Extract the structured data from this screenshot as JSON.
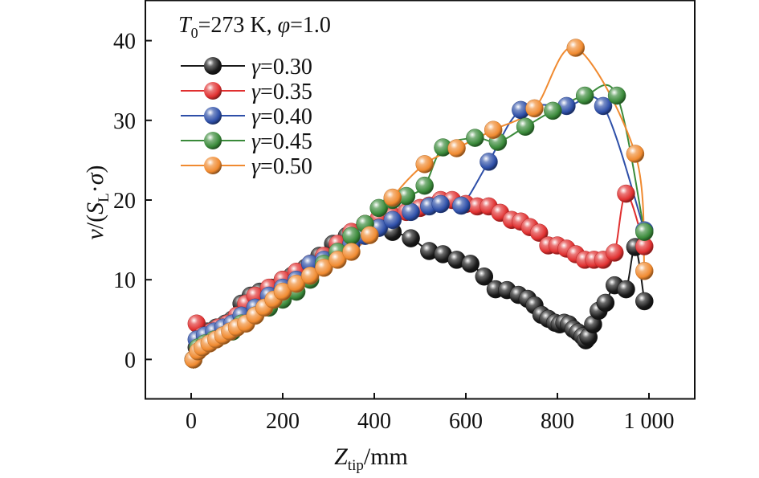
{
  "chart_data": {
    "type": "line",
    "condition_label": {
      "t_symbol": "T",
      "t_sub": "0",
      "t_value": "=273 K, ",
      "phi_symbol": "φ",
      "phi_value": "=1.0"
    },
    "xlabel": {
      "main": "Z",
      "sub": "tip",
      "rest": "/mm"
    },
    "ylabel": {
      "pre": "v/(S",
      "sub": "L",
      "post": "·σ)"
    },
    "xlim": [
      -100,
      1100
    ],
    "ylim": [
      -5,
      45
    ],
    "xticks": [
      0,
      200,
      400,
      600,
      800,
      1000
    ],
    "xtick_labels": [
      "0",
      "200",
      "400",
      "600",
      "800",
      "1 000"
    ],
    "yticks": [
      0,
      10,
      20,
      30,
      40
    ],
    "ytick_labels": [
      "0",
      "10",
      "20",
      "30",
      "40"
    ],
    "legend_position": "top-left",
    "series": [
      {
        "name": "γ=0.30",
        "color": "#1a1a1a",
        "points": [
          [
            5,
            0
          ],
          [
            12,
            1.5
          ],
          [
            20,
            2.5
          ],
          [
            35,
            3.5
          ],
          [
            55,
            4
          ],
          [
            75,
            4.5
          ],
          [
            90,
            5
          ],
          [
            110,
            7
          ],
          [
            130,
            8
          ],
          [
            150,
            8.5
          ],
          [
            175,
            9
          ],
          [
            200,
            10
          ],
          [
            220,
            10.5
          ],
          [
            250,
            11.5
          ],
          [
            280,
            13
          ],
          [
            310,
            14.5
          ],
          [
            340,
            15.5
          ],
          [
            370,
            16
          ],
          [
            400,
            16.5
          ],
          [
            440,
            16
          ],
          [
            480,
            15.2
          ],
          [
            520,
            13.6
          ],
          [
            550,
            13.2
          ],
          [
            580,
            12.5
          ],
          [
            610,
            12
          ],
          [
            640,
            10.4
          ],
          [
            665,
            8.8
          ],
          [
            690,
            8.7
          ],
          [
            715,
            8.1
          ],
          [
            735,
            7.6
          ],
          [
            750,
            6.8
          ],
          [
            765,
            5.6
          ],
          [
            780,
            5.1
          ],
          [
            795,
            4.6
          ],
          [
            805,
            4.4
          ],
          [
            815,
            4.6
          ],
          [
            825,
            4.4
          ],
          [
            835,
            3.8
          ],
          [
            845,
            3.4
          ],
          [
            855,
            2.9
          ],
          [
            862,
            2.4
          ],
          [
            868,
            2.8
          ],
          [
            878,
            4.4
          ],
          [
            890,
            6.1
          ],
          [
            905,
            7.1
          ],
          [
            925,
            9.3
          ],
          [
            950,
            8.8
          ],
          [
            970,
            14.1
          ],
          [
            990,
            7.3
          ]
        ]
      },
      {
        "name": "γ=0.35",
        "color": "#e03030",
        "points": [
          [
            5,
            0
          ],
          [
            12,
            4.5
          ],
          [
            25,
            3
          ],
          [
            45,
            3.5
          ],
          [
            60,
            4
          ],
          [
            80,
            4.5
          ],
          [
            100,
            5.5
          ],
          [
            120,
            7
          ],
          [
            140,
            8
          ],
          [
            170,
            9
          ],
          [
            200,
            10
          ],
          [
            230,
            11
          ],
          [
            260,
            12
          ],
          [
            290,
            13
          ],
          [
            320,
            14.5
          ],
          [
            350,
            16
          ],
          [
            380,
            17
          ],
          [
            410,
            17.7
          ],
          [
            440,
            18
          ],
          [
            470,
            18.5
          ],
          [
            500,
            19
          ],
          [
            520,
            19.3
          ],
          [
            545,
            20
          ],
          [
            570,
            20
          ],
          [
            600,
            19.5
          ],
          [
            625,
            19.2
          ],
          [
            650,
            19.2
          ],
          [
            675,
            18.4
          ],
          [
            700,
            17.5
          ],
          [
            720,
            17.3
          ],
          [
            740,
            16.6
          ],
          [
            760,
            15.9
          ],
          [
            780,
            14.3
          ],
          [
            800,
            14.3
          ],
          [
            820,
            13.9
          ],
          [
            840,
            13.2
          ],
          [
            860,
            12.5
          ],
          [
            880,
            12.5
          ],
          [
            900,
            12.5
          ],
          [
            925,
            13.4
          ],
          [
            950,
            20.8
          ],
          [
            990,
            14.2
          ]
        ]
      },
      {
        "name": "γ=0.40",
        "color": "#2e4fa8",
        "points": [
          [
            5,
            0
          ],
          [
            12,
            2.5
          ],
          [
            30,
            3
          ],
          [
            50,
            3.5
          ],
          [
            70,
            4
          ],
          [
            90,
            4.5
          ],
          [
            110,
            5.5
          ],
          [
            140,
            6.5
          ],
          [
            170,
            8
          ],
          [
            200,
            9
          ],
          [
            230,
            10
          ],
          [
            260,
            12
          ],
          [
            290,
            12.5
          ],
          [
            320,
            13.2
          ],
          [
            350,
            14.5
          ],
          [
            380,
            15.5
          ],
          [
            410,
            16.5
          ],
          [
            440,
            17.5
          ],
          [
            480,
            18.5
          ],
          [
            520,
            19.2
          ],
          [
            545,
            19.5
          ],
          [
            590,
            19.3
          ],
          [
            650,
            24.8
          ],
          [
            720,
            31.3
          ],
          [
            820,
            31.8
          ],
          [
            900,
            31.8
          ],
          [
            990,
            16.2
          ]
        ]
      },
      {
        "name": "γ=0.45",
        "color": "#3a8a3a",
        "points": [
          [
            5,
            0
          ],
          [
            15,
            1.5
          ],
          [
            30,
            2
          ],
          [
            50,
            2.5
          ],
          [
            70,
            3
          ],
          [
            90,
            3.5
          ],
          [
            110,
            4.5
          ],
          [
            140,
            5.5
          ],
          [
            170,
            6.5
          ],
          [
            200,
            7.5
          ],
          [
            230,
            8.5
          ],
          [
            260,
            10
          ],
          [
            290,
            12
          ],
          [
            320,
            13.5
          ],
          [
            350,
            15.5
          ],
          [
            380,
            17
          ],
          [
            410,
            19
          ],
          [
            440,
            20
          ],
          [
            470,
            20.5
          ],
          [
            510,
            21.8
          ],
          [
            550,
            26.6
          ],
          [
            620,
            27.8
          ],
          [
            670,
            27.3
          ],
          [
            730,
            29.2
          ],
          [
            790,
            31.2
          ],
          [
            860,
            33.1
          ],
          [
            930,
            33.1
          ],
          [
            990,
            16
          ]
        ]
      },
      {
        "name": "γ=0.50",
        "color": "#f08a30",
        "points": [
          [
            5,
            0
          ],
          [
            15,
            1
          ],
          [
            25,
            1.5
          ],
          [
            40,
            2
          ],
          [
            55,
            2.5
          ],
          [
            70,
            3
          ],
          [
            85,
            3.5
          ],
          [
            100,
            4
          ],
          [
            120,
            4.5
          ],
          [
            140,
            5.5
          ],
          [
            160,
            6.5
          ],
          [
            180,
            7.5
          ],
          [
            200,
            8.5
          ],
          [
            230,
            9.5
          ],
          [
            260,
            10.5
          ],
          [
            290,
            11.5
          ],
          [
            320,
            12.5
          ],
          [
            350,
            13.5
          ],
          [
            390,
            15.6
          ],
          [
            440,
            20.3
          ],
          [
            510,
            24.5
          ],
          [
            580,
            26.5
          ],
          [
            660,
            28.8
          ],
          [
            750,
            31.5
          ],
          [
            840,
            39.1
          ],
          [
            970,
            25.8
          ],
          [
            990,
            11.1
          ]
        ]
      }
    ]
  }
}
